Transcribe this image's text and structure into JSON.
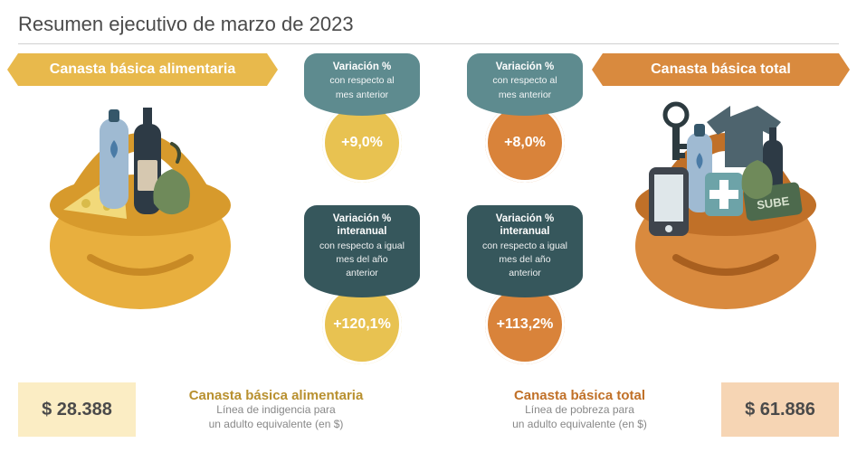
{
  "title": "Resumen ejecutivo de marzo de 2023",
  "colors": {
    "yellow_bar": "#e8b94c",
    "yellow_light": "#fbedc4",
    "yellow_circle": "#e8c251",
    "orange_bar": "#d98a3e",
    "orange_light": "#f6d5b4",
    "orange_circle": "#d9833a",
    "teal": "#5e8b8f",
    "teal_dark": "#36575c",
    "basket_body": "#e8af3e",
    "basket_handle": "#d79a2c",
    "basket_shadow": "#c88a25",
    "wine_dark": "#2d3a45",
    "bottle_blue": "#9fbad2",
    "bottle_cap": "#35576a",
    "cheese": "#f2d97a",
    "cheese_holes": "#d9bb4a",
    "drop": "#4a7ba6",
    "phone": "#3f454d",
    "phone_screen": "#dfe7ea",
    "tshirt": "#4e646e",
    "medkit": "#6da3a8",
    "sube": "#4d6a4d",
    "key": "#2c3a3f",
    "text_dark": "#4a4a4a",
    "text_gray": "#888888",
    "desc_title_yellow": "#b8902f",
    "desc_title_orange": "#c07028"
  },
  "left": {
    "header": "Canasta básica alimentaria",
    "price": "$ 28.388",
    "desc_title": "Canasta básica alimentaria",
    "desc_line1": "Línea de indigencia para",
    "desc_line2": "un adulto equivalente (en $)",
    "variation_month": {
      "tag_line1": "Variación %",
      "tag_line2": "con respecto al",
      "tag_line3": "mes anterior",
      "value": "+9,0%"
    },
    "variation_year": {
      "tag_line1": "Variación %",
      "tag_line1b": "interanual",
      "tag_line2": "con respecto a igual",
      "tag_line3": "mes del año",
      "tag_line4": "anterior",
      "value": "+120,1%"
    }
  },
  "right": {
    "header": "Canasta básica total",
    "price": "$ 61.886",
    "desc_title": "Canasta básica total",
    "desc_line1": "Línea de pobreza para",
    "desc_line2": "un adulto equivalente (en $)",
    "variation_month": {
      "tag_line1": "Variación %",
      "tag_line2": "con respecto al",
      "tag_line3": "mes anterior",
      "value": "+8,0%"
    },
    "variation_year": {
      "tag_line1": "Variación %",
      "tag_line1b": "interanual",
      "tag_line2": "con respecto a igual",
      "tag_line3": "mes del año",
      "tag_line4": "anterior",
      "value": "+113,2%"
    }
  }
}
